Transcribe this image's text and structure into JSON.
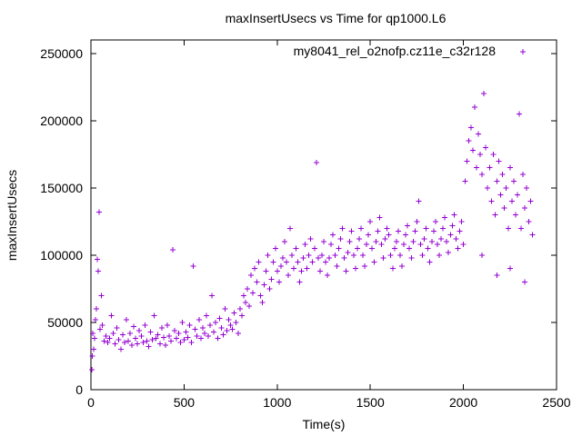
{
  "chart_data": {
    "type": "scatter",
    "title": "maxInsertUsecs vs Time for qp1000.L6",
    "xlabel": "Time(s)",
    "ylabel": "maxInsertUsecs",
    "xlim": [
      0,
      2500
    ],
    "ylim": [
      0,
      260000
    ],
    "x_ticks": [
      0,
      500,
      1000,
      1500,
      2000,
      2500
    ],
    "x_tick_labels": [
      "0",
      "500",
      "1000",
      "1500",
      "2000",
      "2500"
    ],
    "y_ticks": [
      0,
      50000,
      100000,
      150000,
      200000,
      250000
    ],
    "y_tick_labels": [
      "0",
      "50000",
      "100000",
      "150000",
      "200000",
      "250000"
    ],
    "grid": false,
    "legend_position": "top-right",
    "series": [
      {
        "name": "my8041_rel_o2nofp.cz11e_c32r128",
        "marker": "plus",
        "color": "#9400d3",
        "points": [
          [
            5,
            15000
          ],
          [
            8,
            25000
          ],
          [
            10,
            42000
          ],
          [
            15,
            30000
          ],
          [
            20,
            38000
          ],
          [
            25,
            52000
          ],
          [
            30,
            60000
          ],
          [
            35,
            97000
          ],
          [
            40,
            88000
          ],
          [
            45,
            132000
          ],
          [
            50,
            45000
          ],
          [
            55,
            70000
          ],
          [
            60,
            48000
          ],
          [
            70,
            36000
          ],
          [
            80,
            40000
          ],
          [
            90,
            35000
          ],
          [
            100,
            38000
          ],
          [
            110,
            55000
          ],
          [
            120,
            42000
          ],
          [
            130,
            34000
          ],
          [
            140,
            46000
          ],
          [
            150,
            37000
          ],
          [
            160,
            30000
          ],
          [
            170,
            41000
          ],
          [
            180,
            35000
          ],
          [
            190,
            52000
          ],
          [
            200,
            36000
          ],
          [
            210,
            42000
          ],
          [
            220,
            33000
          ],
          [
            230,
            47000
          ],
          [
            240,
            38000
          ],
          [
            250,
            34000
          ],
          [
            260,
            44000
          ],
          [
            270,
            40000
          ],
          [
            280,
            35000
          ],
          [
            290,
            48000
          ],
          [
            300,
            36000
          ],
          [
            310,
            32000
          ],
          [
            320,
            43000
          ],
          [
            330,
            37000
          ],
          [
            340,
            55000
          ],
          [
            350,
            38000
          ],
          [
            360,
            41000
          ],
          [
            370,
            34000
          ],
          [
            380,
            46000
          ],
          [
            390,
            39000
          ],
          [
            400,
            33000
          ],
          [
            410,
            48000
          ],
          [
            420,
            40000
          ],
          [
            430,
            36000
          ],
          [
            440,
            104000
          ],
          [
            450,
            44000
          ],
          [
            460,
            38000
          ],
          [
            470,
            42000
          ],
          [
            480,
            35000
          ],
          [
            490,
            50000
          ],
          [
            500,
            37000
          ],
          [
            510,
            43000
          ],
          [
            520,
            39000
          ],
          [
            530,
            48000
          ],
          [
            540,
            35000
          ],
          [
            550,
            92000
          ],
          [
            560,
            45000
          ],
          [
            570,
            40000
          ],
          [
            580,
            52000
          ],
          [
            590,
            38000
          ],
          [
            600,
            46000
          ],
          [
            610,
            42000
          ],
          [
            620,
            55000
          ],
          [
            630,
            40000
          ],
          [
            640,
            48000
          ],
          [
            650,
            70000
          ],
          [
            660,
            43000
          ],
          [
            670,
            50000
          ],
          [
            680,
            38000
          ],
          [
            690,
            53000
          ],
          [
            700,
            46000
          ],
          [
            710,
            41000
          ],
          [
            720,
            60000
          ],
          [
            730,
            44000
          ],
          [
            740,
            52000
          ],
          [
            750,
            48000
          ],
          [
            760,
            45000
          ],
          [
            770,
            57000
          ],
          [
            780,
            50000
          ],
          [
            790,
            42000
          ],
          [
            800,
            60000
          ],
          [
            810,
            55000
          ],
          [
            820,
            70000
          ],
          [
            830,
            65000
          ],
          [
            840,
            75000
          ],
          [
            850,
            62000
          ],
          [
            860,
            85000
          ],
          [
            870,
            72000
          ],
          [
            880,
            90000
          ],
          [
            890,
            80000
          ],
          [
            900,
            95000
          ],
          [
            910,
            70000
          ],
          [
            920,
            65000
          ],
          [
            930,
            78000
          ],
          [
            940,
            88000
          ],
          [
            950,
            100000
          ],
          [
            960,
            75000
          ],
          [
            970,
            82000
          ],
          [
            980,
            95000
          ],
          [
            990,
            105000
          ],
          [
            1000,
            88000
          ],
          [
            1010,
            80000
          ],
          [
            1020,
            92000
          ],
          [
            1030,
            98000
          ],
          [
            1040,
            110000
          ],
          [
            1050,
            95000
          ],
          [
            1060,
            85000
          ],
          [
            1070,
            120000
          ],
          [
            1080,
            100000
          ],
          [
            1090,
            90000
          ],
          [
            1100,
            105000
          ],
          [
            1110,
            95000
          ],
          [
            1120,
            80000
          ],
          [
            1130,
            88000
          ],
          [
            1140,
            98000
          ],
          [
            1150,
            108000
          ],
          [
            1160,
            90000
          ],
          [
            1170,
            100000
          ],
          [
            1180,
            112000
          ],
          [
            1190,
            95000
          ],
          [
            1200,
            105000
          ],
          [
            1210,
            169000
          ],
          [
            1220,
            98000
          ],
          [
            1230,
            88000
          ],
          [
            1240,
            100000
          ],
          [
            1250,
            110000
          ],
          [
            1260,
            95000
          ],
          [
            1270,
            85000
          ],
          [
            1280,
            98000
          ],
          [
            1290,
            108000
          ],
          [
            1300,
            115000
          ],
          [
            1310,
            100000
          ],
          [
            1320,
            92000
          ],
          [
            1330,
            105000
          ],
          [
            1340,
            112000
          ],
          [
            1350,
            120000
          ],
          [
            1360,
            98000
          ],
          [
            1370,
            88000
          ],
          [
            1380,
            102000
          ],
          [
            1390,
            110000
          ],
          [
            1400,
            118000
          ],
          [
            1410,
            100000
          ],
          [
            1420,
            90000
          ],
          [
            1430,
            105000
          ],
          [
            1440,
            112000
          ],
          [
            1450,
            120000
          ],
          [
            1460,
            100000
          ],
          [
            1470,
            92000
          ],
          [
            1480,
            108000
          ],
          [
            1490,
            115000
          ],
          [
            1500,
            125000
          ],
          [
            1510,
            105000
          ],
          [
            1520,
            95000
          ],
          [
            1530,
            110000
          ],
          [
            1540,
            118000
          ],
          [
            1550,
            128000
          ],
          [
            1560,
            108000
          ],
          [
            1570,
            98000
          ],
          [
            1580,
            112000
          ],
          [
            1590,
            120000
          ],
          [
            1600,
            115000
          ],
          [
            1610,
            100000
          ],
          [
            1620,
            90000
          ],
          [
            1630,
            105000
          ],
          [
            1640,
            110000
          ],
          [
            1650,
            118000
          ],
          [
            1660,
            100000
          ],
          [
            1670,
            92000
          ],
          [
            1680,
            108000
          ],
          [
            1690,
            115000
          ],
          [
            1700,
            122000
          ],
          [
            1710,
            105000
          ],
          [
            1720,
            98000
          ],
          [
            1730,
            110000
          ],
          [
            1740,
            118000
          ],
          [
            1750,
            125000
          ],
          [
            1760,
            140000
          ],
          [
            1770,
            108000
          ],
          [
            1780,
            100000
          ],
          [
            1790,
            112000
          ],
          [
            1800,
            120000
          ],
          [
            1810,
            105000
          ],
          [
            1820,
            95000
          ],
          [
            1830,
            110000
          ],
          [
            1840,
            118000
          ],
          [
            1850,
            125000
          ],
          [
            1860,
            108000
          ],
          [
            1870,
            100000
          ],
          [
            1880,
            112000
          ],
          [
            1890,
            120000
          ],
          [
            1900,
            128000
          ],
          [
            1910,
            110000
          ],
          [
            1920,
            102000
          ],
          [
            1930,
            115000
          ],
          [
            1940,
            122000
          ],
          [
            1950,
            130000
          ],
          [
            1960,
            112000
          ],
          [
            1970,
            105000
          ],
          [
            1980,
            118000
          ],
          [
            1990,
            125000
          ],
          [
            2000,
            108000
          ],
          [
            2010,
            155000
          ],
          [
            2020,
            170000
          ],
          [
            2030,
            185000
          ],
          [
            2040,
            195000
          ],
          [
            2050,
            178000
          ],
          [
            2060,
            210000
          ],
          [
            2070,
            165000
          ],
          [
            2080,
            190000
          ],
          [
            2090,
            175000
          ],
          [
            2100,
            160000
          ],
          [
            2110,
            220000
          ],
          [
            2120,
            180000
          ],
          [
            2130,
            150000
          ],
          [
            2140,
            165000
          ],
          [
            2150,
            140000
          ],
          [
            2160,
            175000
          ],
          [
            2170,
            130000
          ],
          [
            2180,
            155000
          ],
          [
            2190,
            170000
          ],
          [
            2200,
            145000
          ],
          [
            2210,
            160000
          ],
          [
            2220,
            135000
          ],
          [
            2230,
            150000
          ],
          [
            2240,
            120000
          ],
          [
            2250,
            165000
          ],
          [
            2260,
            140000
          ],
          [
            2270,
            155000
          ],
          [
            2280,
            130000
          ],
          [
            2290,
            145000
          ],
          [
            2300,
            205000
          ],
          [
            2310,
            120000
          ],
          [
            2320,
            160000
          ],
          [
            2330,
            135000
          ],
          [
            2340,
            150000
          ],
          [
            2350,
            125000
          ],
          [
            2360,
            140000
          ],
          [
            2370,
            115000
          ],
          [
            2330,
            80000
          ],
          [
            2180,
            85000
          ],
          [
            2250,
            90000
          ],
          [
            2100,
            100000
          ]
        ]
      }
    ]
  }
}
